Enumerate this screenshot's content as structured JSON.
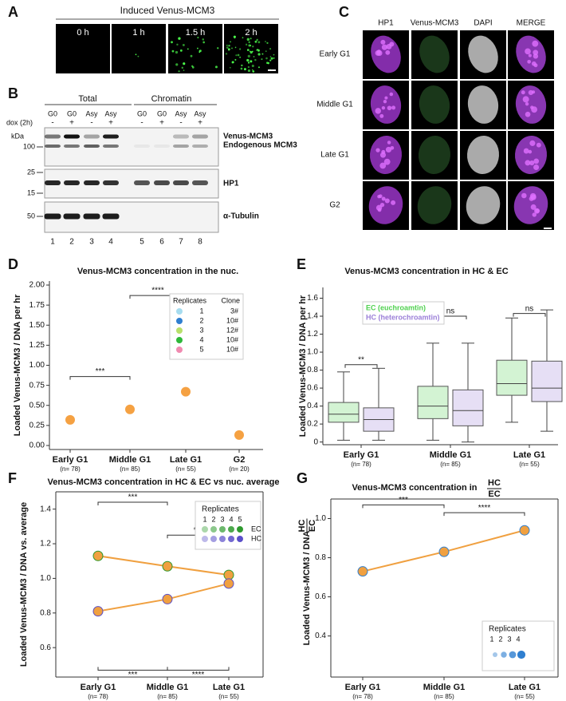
{
  "panel_a": {
    "letter": "A",
    "title": "Induced Venus-MCM3",
    "timepoints": [
      "0 h",
      "1 h",
      "1.5 h",
      "2 h"
    ]
  },
  "panel_b": {
    "letter": "B",
    "groups": [
      "Total",
      "Chromatin"
    ],
    "dox_label": "dox (2h)",
    "lanes": [
      "G0",
      "G0",
      "Asy",
      "Asy",
      "G0",
      "G0",
      "Asy",
      "Asy"
    ],
    "dox": [
      "-",
      "+",
      "-",
      "+",
      "-",
      "+",
      "-",
      "+"
    ],
    "kda_label": "kDa",
    "markers": [
      100,
      25,
      15,
      50
    ],
    "bands": [
      "Venus-MCM3",
      "Endogenous MCM3",
      "HP1",
      "α-Tubulin"
    ],
    "lane_numbers": [
      1,
      2,
      3,
      4,
      5,
      6,
      7,
      8
    ]
  },
  "panel_c": {
    "letter": "C",
    "columns": [
      "HP1",
      "Venus-MCM3",
      "DAPI",
      "MERGE"
    ],
    "rows": [
      "Early G1",
      "Middle G1",
      "Late G1",
      "G2"
    ]
  },
  "chart_data": [
    {
      "panel": "D",
      "type": "scatter",
      "title": "Venus-MCM3 concentration in the nuc.",
      "y_label": "Loaded Venus-MCM3 / DNA per hr",
      "categories": [
        "Early G1",
        "Middle G1",
        "Late G1",
        "G2"
      ],
      "n_labels": [
        "(n= 78)",
        "(n= 85)",
        "(n= 55)",
        "(n= 20)"
      ],
      "values": [
        0.32,
        0.45,
        0.67,
        0.13
      ],
      "color": "#f5a142",
      "ylim": [
        -0.05,
        2.05
      ],
      "yticks": [
        {
          "value": 0,
          "label": "0.00"
        },
        0.25,
        {
          "value": 0.5,
          "label": "0.50"
        },
        0.75,
        {
          "value": 1,
          "label": "1.00"
        },
        1.25,
        {
          "value": 1.5,
          "label": "1.50"
        },
        1.75,
        {
          "value": 2,
          "label": "2.00"
        }
      ],
      "significance": [
        "***",
        "****"
      ],
      "legend": {
        "titles": [
          "Replicates",
          "Clone"
        ],
        "entries": [
          {
            "label": 1,
            "clone": "3#",
            "color": "#a6dcef"
          },
          {
            "label": 2,
            "clone": "10#",
            "color": "#2f7fd0"
          },
          {
            "label": 3,
            "clone": "12#",
            "color": "#b8e06a"
          },
          {
            "label": 4,
            "clone": "10#",
            "color": "#2eb83a"
          },
          {
            "label": 5,
            "clone": "10#",
            "color": "#f08ab0"
          }
        ]
      }
    },
    {
      "panel": "E",
      "type": "box",
      "title": "Venus-MCM3 concentration in HC & EC",
      "y_label": "Loaded Venus-MCM3 / DNA per hr",
      "categories": [
        "Early G1",
        "Middle G1",
        "Late G1"
      ],
      "n_labels": [
        "(n= 78)",
        "(n= 85)",
        "(n= 55)"
      ],
      "series": [
        {
          "name": "EC (euchroamtin)",
          "color": "#4fd14f",
          "q1": [
            0.22,
            0.26,
            0.52
          ],
          "median": [
            0.31,
            0.4,
            0.65
          ],
          "q3": [
            0.44,
            0.62,
            0.91
          ],
          "whislo": [
            0.02,
            0.02,
            0.22
          ],
          "whishi": [
            0.78,
            1.1,
            1.38
          ]
        },
        {
          "name": "HC (heterochroamtin)",
          "color": "#9b7fd8",
          "q1": [
            0.12,
            0.18,
            0.45
          ],
          "median": [
            0.25,
            0.35,
            0.6
          ],
          "q3": [
            0.38,
            0.58,
            0.9
          ],
          "whislo": [
            0.02,
            0,
            0.12
          ],
          "whishi": [
            0.82,
            1.1,
            1.47
          ]
        }
      ],
      "ylim": [
        -0.03,
        1.72
      ],
      "yticks": [
        0,
        0.2,
        0.4,
        0.6,
        0.8,
        {
          "value": 1,
          "label": "1.0"
        },
        1.2,
        1.4,
        1.6
      ],
      "significance": [
        "**",
        "ns",
        "ns"
      ]
    },
    {
      "panel": "F",
      "type": "line",
      "title": "Venus-MCM3 concentration in HC & EC vs nuc. average",
      "y_label": "Loaded Venus-MCM3 / DNA vs. average",
      "categories": [
        "Early G1",
        "Middle G1",
        "Late G1"
      ],
      "n_labels": [
        "(n= 78)",
        "(n= 85)",
        "(n= 55)"
      ],
      "series": [
        {
          "name": "EC",
          "color": "#2e9a2e",
          "values": [
            1.13,
            1.07,
            1.02
          ]
        },
        {
          "name": "HC",
          "color": "#5a4fc9",
          "values": [
            0.81,
            0.88,
            0.97
          ]
        }
      ],
      "line_color": "#f0a040",
      "ylim": [
        0.43,
        1.5
      ],
      "yticks": [
        0.6,
        0.8,
        {
          "value": 1,
          "label": "1.0"
        },
        1.2,
        1.4
      ],
      "significance": [
        "***",
        "***",
        "***",
        "****"
      ],
      "legend": {
        "title": "Replicates",
        "replicates": [
          1,
          2,
          3,
          4,
          5
        ]
      }
    },
    {
      "panel": "G",
      "type": "line",
      "title": "Venus-MCM3 concentration in",
      "ratio": [
        "HC",
        "EC"
      ],
      "y_label": "Loaded Venus-MCM3 / DNA",
      "categories": [
        "Early G1",
        "Middle G1",
        "Late G1"
      ],
      "n_labels": [
        "(n= 78)",
        "(n= 85)",
        "(n= 55)"
      ],
      "values": [
        0.73,
        0.83,
        0.94
      ],
      "color": "#f0a040",
      "point_color": "#2f7fd0",
      "ylim": [
        0.19,
        1.1
      ],
      "yticks": [
        0.4,
        0.6,
        0.8,
        {
          "value": 1,
          "label": "1.0"
        }
      ],
      "significance": [
        "***",
        "****"
      ],
      "legend": {
        "title": "Replicates",
        "replicates": [
          1,
          2,
          3,
          4
        ]
      }
    }
  ]
}
